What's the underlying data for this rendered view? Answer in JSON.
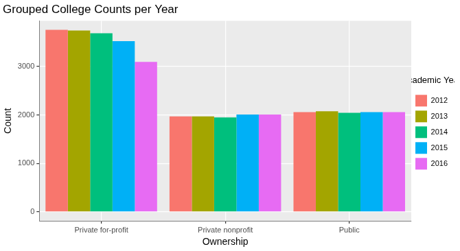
{
  "chart_data": {
    "type": "bar",
    "title": "Grouped College Counts per Year",
    "x_label": "Ownership",
    "y_label": "Count",
    "legend_title": "Academic Year:",
    "legend": "right",
    "grid": true,
    "categories": [
      "Private for-profit",
      "Private nonprofit",
      "Public"
    ],
    "series": [
      {
        "name": "2012",
        "color": "#F8766D",
        "values": [
          3760,
          1970,
          2060
        ]
      },
      {
        "name": "2013",
        "color": "#A3A500",
        "values": [
          3745,
          1970,
          2075
        ]
      },
      {
        "name": "2014",
        "color": "#00BF7D",
        "values": [
          3690,
          1950,
          2045
        ]
      },
      {
        "name": "2015",
        "color": "#00B0F6",
        "values": [
          3525,
          2010,
          2060
        ]
      },
      {
        "name": "2016",
        "color": "#E76BF3",
        "values": [
          3095,
          2010,
          2060
        ]
      }
    ],
    "ylim": [
      -188,
      3945
    ],
    "yticks": [
      0,
      1000,
      2000,
      3000
    ]
  }
}
